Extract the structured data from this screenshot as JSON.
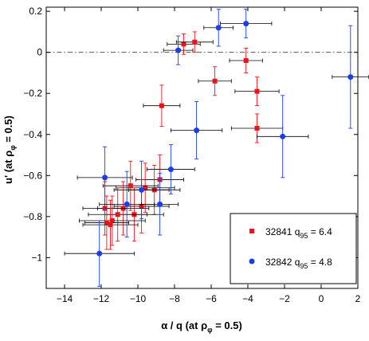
{
  "chart_data": {
    "type": "scatter",
    "xlim": [
      -15,
      2
    ],
    "ylim": [
      -1.15,
      0.22
    ],
    "xticks": [
      -14,
      -12,
      -10,
      -8,
      -6,
      -4,
      -2,
      0,
      2
    ],
    "yticks": [
      0.2,
      0,
      -0.2,
      -0.4,
      -0.6,
      -0.8,
      -1
    ],
    "xtick_labels": [
      "−14",
      "−12",
      "−10",
      "−8",
      "−6",
      "−4",
      "−2",
      "0",
      "2"
    ],
    "ytick_labels": [
      "0.2",
      "0",
      "−0.2",
      "−0.4",
      "−0.6",
      "−0.8",
      "−1"
    ],
    "xlabel": {
      "main": "α  / q (at ρ",
      "sub": "φ",
      "tail": " = 0.5)"
    },
    "ylabel": {
      "main": "u' (at ρ",
      "sub": "φ",
      "tail": " = 0.5)"
    },
    "reference_line_y": 0,
    "grid": false,
    "legend_position": "bottom-right",
    "series": [
      {
        "name": "32841 q95 = 6.4",
        "legend": {
          "pre": "32841 q",
          "sub": "95",
          "post": " = 6.4"
        },
        "color": "#e8141c",
        "marker": "square",
        "points": [
          {
            "x": -7.5,
            "y": 0.04,
            "xerr": 0.9,
            "yerr": 0.05
          },
          {
            "x": -6.9,
            "y": 0.05,
            "xerr": 1.0,
            "yerr": 0.05
          },
          {
            "x": -5.8,
            "y": -0.14,
            "xerr": 0.9,
            "yerr": 0.07
          },
          {
            "x": -4.1,
            "y": -0.04,
            "xerr": 0.9,
            "yerr": 0.06
          },
          {
            "x": -3.5,
            "y": -0.19,
            "xerr": 1.2,
            "yerr": 0.07
          },
          {
            "x": -3.5,
            "y": -0.37,
            "xerr": 1.4,
            "yerr": 0.07
          },
          {
            "x": -8.7,
            "y": -0.26,
            "xerr": 1.0,
            "yerr": 0.1
          },
          {
            "x": -8.8,
            "y": -0.62,
            "xerr": 1.3,
            "yerr": 0.12
          },
          {
            "x": -9.1,
            "y": -0.67,
            "xerr": 1.4,
            "yerr": 0.12
          },
          {
            "x": -9.6,
            "y": -0.66,
            "xerr": 1.6,
            "yerr": 0.12
          },
          {
            "x": -10.4,
            "y": -0.65,
            "xerr": 1.5,
            "yerr": 0.12
          },
          {
            "x": -9.8,
            "y": -0.75,
            "xerr": 1.5,
            "yerr": 0.13
          },
          {
            "x": -10.2,
            "y": -0.79,
            "xerr": 1.6,
            "yerr": 0.13
          },
          {
            "x": -10.8,
            "y": -0.76,
            "xerr": 1.4,
            "yerr": 0.13
          },
          {
            "x": -11.1,
            "y": -0.79,
            "xerr": 1.6,
            "yerr": 0.13
          },
          {
            "x": -11.8,
            "y": -0.76,
            "xerr": 1.2,
            "yerr": 0.13
          },
          {
            "x": -11.4,
            "y": -0.82,
            "xerr": 1.8,
            "yerr": 0.12
          },
          {
            "x": -11.7,
            "y": -0.83,
            "xerr": 1.2,
            "yerr": 0.13
          },
          {
            "x": -11.5,
            "y": -0.84,
            "xerr": 1.5,
            "yerr": 0.12
          }
        ]
      },
      {
        "name": "32842 q95 = 4.8",
        "legend": {
          "pre": "32842 q",
          "sub": "95",
          "post": " = 4.8"
        },
        "color": "#1c3cf0",
        "marker": "circle",
        "points": [
          {
            "x": -7.8,
            "y": 0.01,
            "xerr": 0.8,
            "yerr": 0.07
          },
          {
            "x": -5.6,
            "y": 0.12,
            "xerr": 0.8,
            "yerr": 0.09
          },
          {
            "x": -4.1,
            "y": 0.14,
            "xerr": 1.4,
            "yerr": 0.07
          },
          {
            "x": 1.6,
            "y": -0.12,
            "xerr": 1.0,
            "yerr": 0.25
          },
          {
            "x": -6.8,
            "y": -0.38,
            "xerr": 1.4,
            "yerr": 0.14
          },
          {
            "x": -2.1,
            "y": -0.41,
            "xerr": 1.4,
            "yerr": 0.2
          },
          {
            "x": -8.2,
            "y": -0.57,
            "xerr": 1.3,
            "yerr": 0.12
          },
          {
            "x": -11.8,
            "y": -0.61,
            "xerr": 1.5,
            "yerr": 0.15
          },
          {
            "x": -10.6,
            "y": -0.74,
            "xerr": 1.5,
            "yerr": 0.16
          },
          {
            "x": -9.8,
            "y": -0.67,
            "xerr": 1.5,
            "yerr": 0.14
          },
          {
            "x": -8.8,
            "y": -0.74,
            "xerr": 1.0,
            "yerr": 0.15
          },
          {
            "x": -12.1,
            "y": -0.98,
            "xerr": 1.9,
            "yerr": 0.16
          }
        ]
      }
    ]
  }
}
